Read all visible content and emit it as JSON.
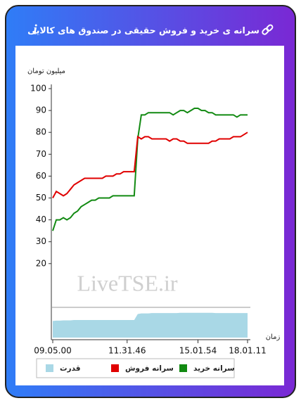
{
  "chart_data": [
    {
      "type": "line",
      "title": "سرانه ی خرید و فروش حقیقی در صندوق های کالایی",
      "info_icon": "i",
      "y_label": "میلیون تومان",
      "x_label": "زمان",
      "watermark": "LiveTSE.ir",
      "categories": [
        "09.05.00",
        null,
        null,
        null,
        null,
        null,
        null,
        null,
        null,
        null,
        null,
        null,
        null,
        null,
        null,
        null,
        null,
        null,
        null,
        null,
        null,
        "11.31.46",
        null,
        null,
        null,
        null,
        null,
        null,
        null,
        null,
        null,
        null,
        null,
        null,
        null,
        null,
        null,
        null,
        null,
        null,
        null,
        "15.01.54",
        null,
        null,
        null,
        null,
        null,
        null,
        null,
        null,
        null,
        null,
        null,
        null,
        null,
        "18.01.11"
      ],
      "ylim": [
        0,
        100
      ],
      "yticks": [
        20,
        30,
        40,
        50,
        60,
        70,
        80,
        90,
        100
      ],
      "series": [
        {
          "name": "سرانه خرید",
          "color": "#128a12",
          "values": [
            35,
            40,
            40,
            41,
            40,
            41,
            43,
            44,
            46,
            47,
            48,
            49,
            49,
            50,
            50,
            50,
            50,
            51,
            51,
            51,
            51,
            51,
            51,
            51,
            77,
            88,
            88,
            89,
            89,
            89,
            89,
            89,
            89,
            89,
            88,
            89,
            90,
            90,
            89,
            90,
            91,
            91,
            90,
            90,
            89,
            89,
            88,
            88,
            88,
            88,
            88,
            88,
            87,
            88,
            88,
            88
          ]
        },
        {
          "name": "سرانه فروش",
          "color": "#e00000",
          "values": [
            50,
            53,
            52,
            51,
            52,
            54,
            56,
            57,
            58,
            59,
            59,
            59,
            59,
            59,
            59,
            60,
            60,
            60,
            61,
            61,
            62,
            62,
            62,
            62,
            78,
            77,
            78,
            78,
            77,
            77,
            77,
            77,
            77,
            76,
            77,
            77,
            76,
            76,
            75,
            75,
            75,
            75,
            75,
            75,
            75,
            76,
            76,
            77,
            77,
            77,
            77,
            78,
            78,
            78,
            79,
            80
          ]
        }
      ]
    },
    {
      "type": "area",
      "ylim": [
        0,
        100
      ],
      "series": [
        {
          "name": "قدرت",
          "color": "#a9d8e6",
          "values": [
            55,
            56,
            56,
            57,
            57,
            57,
            58,
            58,
            58,
            58,
            58,
            58,
            58,
            58,
            58,
            58,
            58,
            58,
            58,
            58,
            58,
            58,
            58,
            58,
            78,
            80,
            80,
            80,
            81,
            81,
            81,
            81,
            81,
            81,
            81,
            81,
            82,
            82,
            82,
            82,
            82,
            82,
            82,
            82,
            82,
            82,
            81,
            81,
            81,
            81,
            81,
            81,
            81,
            81,
            81,
            81
          ]
        }
      ]
    }
  ]
}
